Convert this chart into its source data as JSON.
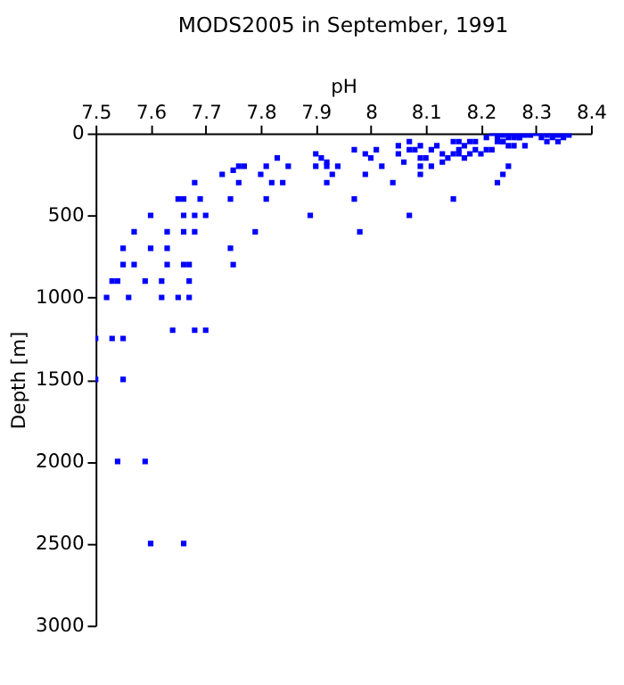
{
  "chart_data": {
    "type": "scatter",
    "title": "MODS2005 in September, 1991",
    "xlabel": "pH",
    "ylabel": "Depth [m]",
    "xlim": [
      7.5,
      8.4
    ],
    "xticks": [
      7.5,
      7.6,
      7.7,
      7.8,
      7.9,
      8,
      8.1,
      8.2,
      8.3,
      8.4
    ],
    "ylim": [
      3000,
      0
    ],
    "yticks": [
      0,
      500,
      1000,
      1500,
      2000,
      2500,
      3000
    ],
    "grid": false,
    "marker": "square",
    "series": [
      {
        "color": "#0000ff",
        "x": [
          7.9,
          7.92,
          7.91,
          7.83,
          7.85,
          7.81,
          7.8,
          7.77,
          7.76,
          7.75,
          7.73,
          7.82,
          7.84,
          7.81,
          7.76,
          7.745,
          7.68,
          7.69,
          7.65,
          7.66,
          7.66,
          7.68,
          7.7,
          7.6,
          7.79,
          7.89,
          7.92,
          7.93,
          7.94,
          7.9,
          7.57,
          7.63,
          7.66,
          7.68,
          7.55,
          7.6,
          7.63,
          7.745,
          7.55,
          7.57,
          7.63,
          7.66,
          7.67,
          7.75,
          7.53,
          7.54,
          7.59,
          7.62,
          7.67,
          7.52,
          7.56,
          7.62,
          7.65,
          7.67,
          7.64,
          7.68,
          7.7,
          7.5,
          7.53,
          7.55,
          7.5,
          7.55,
          7.54,
          7.59,
          7.6,
          7.66,
          7.92,
          7.97,
          7.97,
          7.98,
          7.99,
          8.0,
          7.99,
          8.01,
          8.02,
          8.04,
          8.05,
          8.05,
          8.06,
          8.07,
          8.07,
          8.08,
          8.09,
          8.09,
          8.1,
          8.09,
          8.09,
          8.11,
          8.07,
          8.11,
          8.12,
          8.13,
          8.13,
          8.14,
          8.15,
          8.16,
          8.15,
          8.16,
          8.16,
          8.15,
          8.17,
          8.17,
          8.18,
          8.19,
          8.18,
          8.19,
          8.2,
          8.21,
          8.22,
          8.21,
          8.23,
          8.24,
          8.25,
          8.22,
          8.23,
          8.24,
          8.25,
          8.26,
          8.27,
          8.28,
          8.29,
          8.3,
          8.31,
          8.32,
          8.33,
          8.34,
          8.35,
          8.23,
          8.24,
          8.25,
          8.26,
          8.26,
          8.27,
          8.28,
          8.25,
          8.24,
          8.27,
          8.31,
          8.32,
          8.33,
          8.34,
          8.35,
          8.36,
          8.23
        ],
        "values": [
          125,
          175,
          150,
          150,
          200,
          200,
          250,
          200,
          200,
          225,
          250,
          300,
          300,
          400,
          300,
          400,
          300,
          400,
          400,
          400,
          500,
          500,
          500,
          500,
          600,
          500,
          200,
          250,
          200,
          200,
          600,
          600,
          600,
          600,
          700,
          700,
          700,
          700,
          800,
          800,
          800,
          800,
          800,
          800,
          900,
          900,
          900,
          900,
          900,
          1000,
          1000,
          1000,
          1000,
          1000,
          1200,
          1200,
          1200,
          1250,
          1250,
          1250,
          1500,
          1500,
          2000,
          2000,
          2500,
          2500,
          300,
          100,
          400,
          600,
          125,
          150,
          250,
          100,
          200,
          300,
          75,
          125,
          175,
          50,
          100,
          100,
          75,
          150,
          150,
          200,
          250,
          200,
          500,
          100,
          75,
          125,
          175,
          150,
          50,
          50,
          125,
          100,
          125,
          400,
          75,
          150,
          50,
          50,
          125,
          100,
          125,
          100,
          100,
          25,
          300,
          250,
          200,
          0,
          0,
          10,
          0,
          10,
          10,
          10,
          10,
          0,
          0,
          10,
          10,
          10,
          10,
          25,
          50,
          25,
          25,
          75,
          25,
          75,
          75,
          50,
          25,
          25,
          50,
          25,
          50,
          25,
          10,
          50
        ]
      }
    ]
  }
}
